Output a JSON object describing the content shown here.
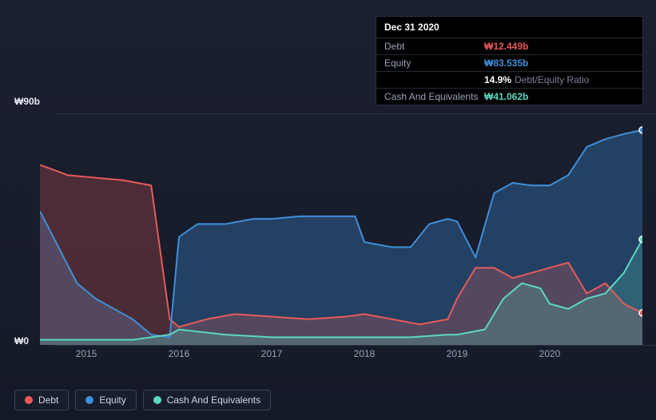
{
  "chart": {
    "type": "area-line",
    "background_gradient": [
      "#1b2030",
      "#151a27"
    ],
    "plot_background": "transparent",
    "grid_color": "#2b3244",
    "axis_label_color": "#e6e9ef",
    "tick_color": "#9aa3b5",
    "y_axis": {
      "min": 0,
      "max": 90,
      "labels": [
        {
          "value": 90,
          "text": "₩90b"
        },
        {
          "value": 0,
          "text": "₩0"
        }
      ]
    },
    "x_axis": {
      "min": 2014.5,
      "max": 2021.0,
      "ticks": [
        2015,
        2016,
        2017,
        2018,
        2019,
        2020
      ]
    },
    "series": [
      {
        "name": "Debt",
        "color": "#e85a5a",
        "fill_opacity": 0.25,
        "line_width": 2,
        "has_area": true,
        "end_marker": true,
        "data": [
          [
            2014.5,
            70
          ],
          [
            2014.8,
            66
          ],
          [
            2015.1,
            65
          ],
          [
            2015.4,
            64
          ],
          [
            2015.7,
            62
          ],
          [
            2015.9,
            10
          ],
          [
            2016.0,
            7
          ],
          [
            2016.3,
            10
          ],
          [
            2016.6,
            12
          ],
          [
            2017.0,
            11
          ],
          [
            2017.4,
            10
          ],
          [
            2017.8,
            11
          ],
          [
            2018.0,
            12
          ],
          [
            2018.3,
            10
          ],
          [
            2018.6,
            8
          ],
          [
            2018.9,
            10
          ],
          [
            2019.0,
            18
          ],
          [
            2019.2,
            30
          ],
          [
            2019.4,
            30
          ],
          [
            2019.6,
            26
          ],
          [
            2019.8,
            28
          ],
          [
            2020.0,
            30
          ],
          [
            2020.2,
            32
          ],
          [
            2020.4,
            20
          ],
          [
            2020.6,
            24
          ],
          [
            2020.8,
            16
          ],
          [
            2021.0,
            12.449
          ]
        ]
      },
      {
        "name": "Equity",
        "color": "#3f8fd9",
        "fill_opacity": 0.32,
        "line_width": 2,
        "has_area": true,
        "end_marker": true,
        "data": [
          [
            2014.5,
            52
          ],
          [
            2014.7,
            38
          ],
          [
            2014.9,
            24
          ],
          [
            2015.1,
            18
          ],
          [
            2015.3,
            14
          ],
          [
            2015.5,
            10
          ],
          [
            2015.7,
            4
          ],
          [
            2015.9,
            3
          ],
          [
            2016.0,
            42
          ],
          [
            2016.2,
            47
          ],
          [
            2016.5,
            47
          ],
          [
            2016.8,
            49
          ],
          [
            2017.0,
            49
          ],
          [
            2017.3,
            50
          ],
          [
            2017.6,
            50
          ],
          [
            2017.9,
            50
          ],
          [
            2018.0,
            40
          ],
          [
            2018.3,
            38
          ],
          [
            2018.5,
            38
          ],
          [
            2018.7,
            47
          ],
          [
            2018.9,
            49
          ],
          [
            2019.0,
            48
          ],
          [
            2019.2,
            34
          ],
          [
            2019.4,
            59
          ],
          [
            2019.6,
            63
          ],
          [
            2019.8,
            62
          ],
          [
            2020.0,
            62
          ],
          [
            2020.2,
            66
          ],
          [
            2020.4,
            77
          ],
          [
            2020.6,
            80
          ],
          [
            2020.8,
            82
          ],
          [
            2021.0,
            83.535
          ]
        ]
      },
      {
        "name": "Cash And Equivalents",
        "color": "#5ad9c1",
        "fill_opacity": 0.22,
        "line_width": 2,
        "has_area": true,
        "end_marker": true,
        "data": [
          [
            2014.5,
            2
          ],
          [
            2015.0,
            2
          ],
          [
            2015.5,
            2
          ],
          [
            2015.9,
            4
          ],
          [
            2016.0,
            6
          ],
          [
            2016.5,
            4
          ],
          [
            2017.0,
            3
          ],
          [
            2017.5,
            3
          ],
          [
            2018.0,
            3
          ],
          [
            2018.5,
            3
          ],
          [
            2018.9,
            4
          ],
          [
            2019.0,
            4
          ],
          [
            2019.3,
            6
          ],
          [
            2019.5,
            18
          ],
          [
            2019.7,
            24
          ],
          [
            2019.9,
            22
          ],
          [
            2020.0,
            16
          ],
          [
            2020.2,
            14
          ],
          [
            2020.4,
            18
          ],
          [
            2020.6,
            20
          ],
          [
            2020.8,
            28
          ],
          [
            2021.0,
            41.062
          ]
        ]
      }
    ],
    "legend": {
      "position": "bottom-left",
      "border_color": "#3a4255",
      "text_color": "#cfd5e3",
      "items": [
        "Debt",
        "Equity",
        "Cash And Equivalents"
      ]
    }
  },
  "tooltip": {
    "date": "Dec 31 2020",
    "rows": [
      {
        "label": "Debt",
        "value": "₩12.449b",
        "color": "#e85a5a"
      },
      {
        "label": "Equity",
        "value": "₩83.535b",
        "color": "#3f8fd9"
      },
      {
        "label": "",
        "value": "14.9%",
        "extra": "Debt/Equity Ratio",
        "color": "#ffffff"
      },
      {
        "label": "Cash And Equivalents",
        "value": "₩41.062b",
        "color": "#5ad9c1"
      }
    ]
  }
}
